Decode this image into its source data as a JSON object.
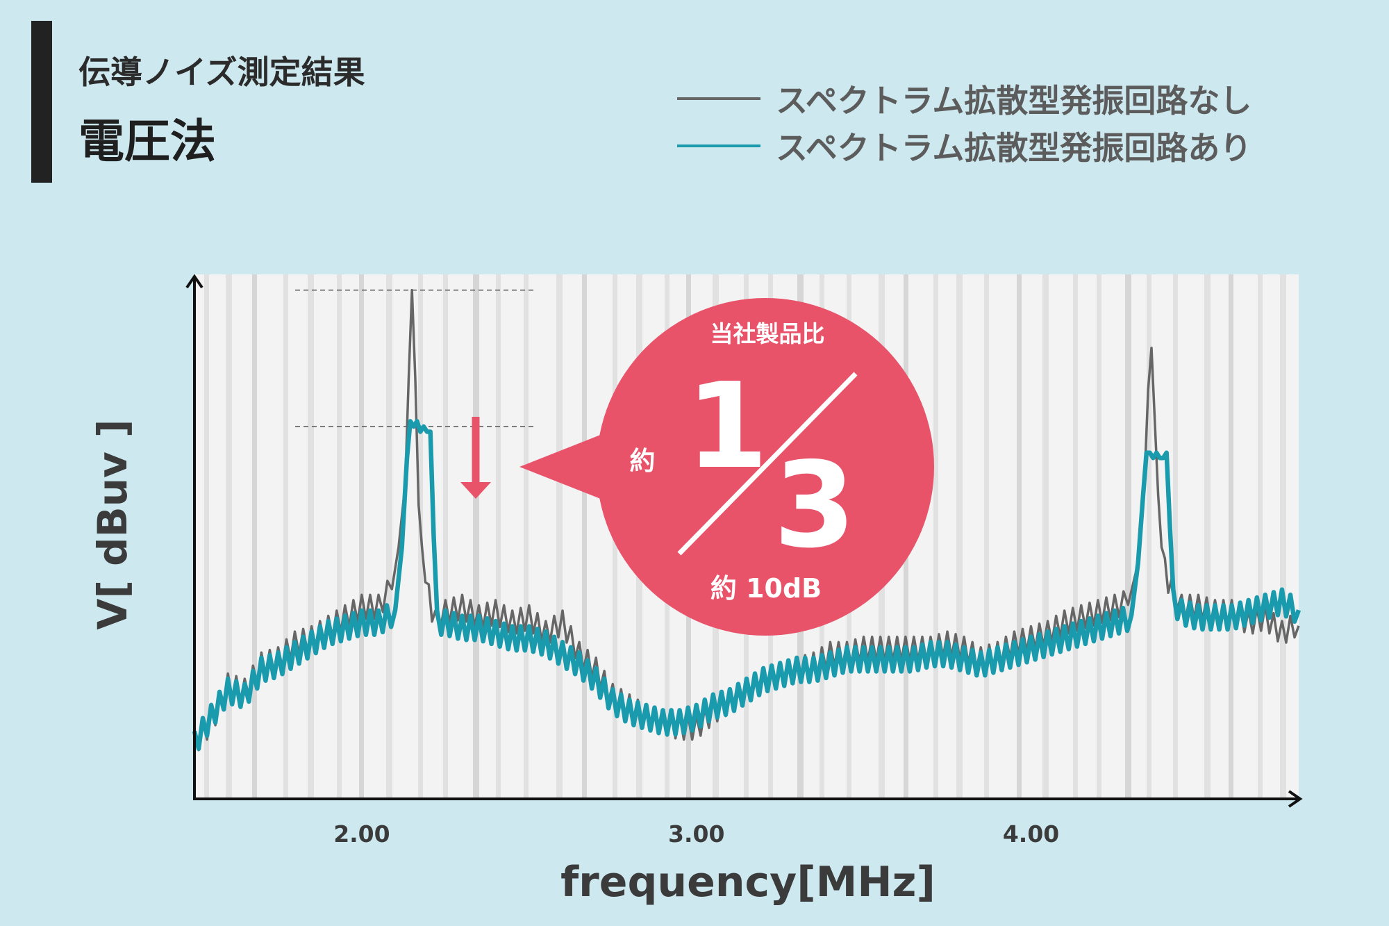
{
  "header": {
    "subtitle": "伝導ノイズ測定結果",
    "title": "電圧法"
  },
  "colors": {
    "background": "#cde9ef",
    "series_without": "#666666",
    "series_with": "#1a9aad",
    "accent": "#e8536a"
  },
  "callout": {
    "top_text": "当社製品比",
    "prefix": "約",
    "numerator": "1",
    "denominator": "3",
    "bottom_text": "約 10dB"
  },
  "chart_data": {
    "type": "line",
    "xlabel": "frequency[MHz]",
    "ylabel": "V[ dBuv ]",
    "xlim": [
      1.5,
      4.8
    ],
    "ylim": [
      0,
      100
    ],
    "xticks": [
      "2.00",
      "3.00",
      "4.00"
    ],
    "grid": true,
    "legend_position": "top-right",
    "series": [
      {
        "name": "スペクトラム拡散型発振回路なし",
        "color": "#666666",
        "points": [
          [
            1.5,
            10
          ],
          [
            1.55,
            14
          ],
          [
            1.6,
            21
          ],
          [
            1.65,
            20
          ],
          [
            1.7,
            25
          ],
          [
            1.75,
            26
          ],
          [
            1.8,
            29
          ],
          [
            1.85,
            30
          ],
          [
            1.9,
            32
          ],
          [
            1.95,
            34
          ],
          [
            2.0,
            36
          ],
          [
            2.05,
            36
          ],
          [
            2.09,
            40
          ],
          [
            2.11,
            48
          ],
          [
            2.13,
            60
          ],
          [
            2.14,
            80
          ],
          [
            2.15,
            97
          ],
          [
            2.16,
            80
          ],
          [
            2.17,
            56
          ],
          [
            2.18,
            48
          ],
          [
            2.19,
            43
          ],
          [
            2.2,
            38
          ],
          [
            2.22,
            33
          ],
          [
            2.25,
            35
          ],
          [
            2.3,
            36
          ],
          [
            2.35,
            34
          ],
          [
            2.4,
            35
          ],
          [
            2.45,
            33
          ],
          [
            2.5,
            34
          ],
          [
            2.55,
            31
          ],
          [
            2.6,
            33
          ],
          [
            2.65,
            27
          ],
          [
            2.7,
            24
          ],
          [
            2.75,
            19
          ],
          [
            2.8,
            17
          ],
          [
            2.85,
            15
          ],
          [
            2.9,
            14
          ],
          [
            2.95,
            13
          ],
          [
            3.0,
            13
          ],
          [
            3.05,
            16
          ],
          [
            3.1,
            18
          ],
          [
            3.15,
            20
          ],
          [
            3.2,
            22
          ],
          [
            3.25,
            23
          ],
          [
            3.3,
            24
          ],
          [
            3.35,
            25
          ],
          [
            3.4,
            27
          ],
          [
            3.45,
            27
          ],
          [
            3.5,
            28
          ],
          [
            3.55,
            28
          ],
          [
            3.6,
            28
          ],
          [
            3.65,
            28
          ],
          [
            3.7,
            28
          ],
          [
            3.75,
            29
          ],
          [
            3.8,
            28
          ],
          [
            3.85,
            26
          ],
          [
            3.9,
            27
          ],
          [
            3.95,
            29
          ],
          [
            4.0,
            30
          ],
          [
            4.05,
            31
          ],
          [
            4.1,
            33
          ],
          [
            4.15,
            34
          ],
          [
            4.2,
            35
          ],
          [
            4.25,
            36
          ],
          [
            4.29,
            37
          ],
          [
            4.32,
            45
          ],
          [
            4.34,
            62
          ],
          [
            4.35,
            78
          ],
          [
            4.36,
            86
          ],
          [
            4.37,
            72
          ],
          [
            4.38,
            58
          ],
          [
            4.39,
            48
          ],
          [
            4.4,
            43
          ],
          [
            4.42,
            39
          ],
          [
            4.45,
            36
          ],
          [
            4.5,
            36
          ],
          [
            4.55,
            35
          ],
          [
            4.6,
            35
          ],
          [
            4.65,
            33
          ],
          [
            4.7,
            34
          ],
          [
            4.75,
            31
          ],
          [
            4.8,
            33
          ]
        ]
      },
      {
        "name": "スペクトラム拡散型発振回路あり",
        "color": "#1a9aad",
        "points": [
          [
            1.5,
            11
          ],
          [
            1.55,
            16
          ],
          [
            1.6,
            21
          ],
          [
            1.65,
            20
          ],
          [
            1.7,
            25
          ],
          [
            1.75,
            26
          ],
          [
            1.8,
            28
          ],
          [
            1.85,
            30
          ],
          [
            1.9,
            32
          ],
          [
            1.95,
            33
          ],
          [
            2.0,
            34
          ],
          [
            2.05,
            34
          ],
          [
            2.1,
            36
          ],
          [
            2.12,
            48
          ],
          [
            2.135,
            65
          ],
          [
            2.145,
            72
          ],
          [
            2.155,
            71
          ],
          [
            2.165,
            72
          ],
          [
            2.175,
            70
          ],
          [
            2.185,
            71
          ],
          [
            2.195,
            70
          ],
          [
            2.205,
            70
          ],
          [
            2.215,
            50
          ],
          [
            2.225,
            34
          ],
          [
            2.25,
            34
          ],
          [
            2.3,
            33
          ],
          [
            2.35,
            33
          ],
          [
            2.4,
            32
          ],
          [
            2.45,
            31
          ],
          [
            2.5,
            31
          ],
          [
            2.55,
            30
          ],
          [
            2.6,
            28
          ],
          [
            2.65,
            26
          ],
          [
            2.7,
            23
          ],
          [
            2.75,
            19
          ],
          [
            2.8,
            17
          ],
          [
            2.85,
            16
          ],
          [
            2.9,
            15
          ],
          [
            2.95,
            15
          ],
          [
            3.0,
            16
          ],
          [
            3.05,
            18
          ],
          [
            3.1,
            19
          ],
          [
            3.15,
            21
          ],
          [
            3.2,
            23
          ],
          [
            3.25,
            24
          ],
          [
            3.3,
            25
          ],
          [
            3.35,
            25
          ],
          [
            3.4,
            26
          ],
          [
            3.45,
            27
          ],
          [
            3.5,
            27
          ],
          [
            3.55,
            27
          ],
          [
            3.6,
            27
          ],
          [
            3.65,
            27
          ],
          [
            3.7,
            28
          ],
          [
            3.75,
            28
          ],
          [
            3.8,
            27
          ],
          [
            3.85,
            26
          ],
          [
            3.9,
            27
          ],
          [
            3.95,
            28
          ],
          [
            4.0,
            29
          ],
          [
            4.05,
            30
          ],
          [
            4.1,
            31
          ],
          [
            4.15,
            32
          ],
          [
            4.2,
            33
          ],
          [
            4.25,
            34
          ],
          [
            4.3,
            35
          ],
          [
            4.32,
            45
          ],
          [
            4.335,
            58
          ],
          [
            4.345,
            66
          ],
          [
            4.355,
            66
          ],
          [
            4.365,
            65
          ],
          [
            4.375,
            66
          ],
          [
            4.385,
            65
          ],
          [
            4.395,
            65
          ],
          [
            4.405,
            66
          ],
          [
            4.415,
            52
          ],
          [
            4.425,
            38
          ],
          [
            4.45,
            36
          ],
          [
            4.5,
            35
          ],
          [
            4.55,
            35
          ],
          [
            4.6,
            35
          ],
          [
            4.65,
            36
          ],
          [
            4.7,
            37
          ],
          [
            4.75,
            38
          ],
          [
            4.8,
            36
          ]
        ]
      }
    ],
    "reference_lines": {
      "peak_without": 97,
      "peak_with": 71
    }
  }
}
